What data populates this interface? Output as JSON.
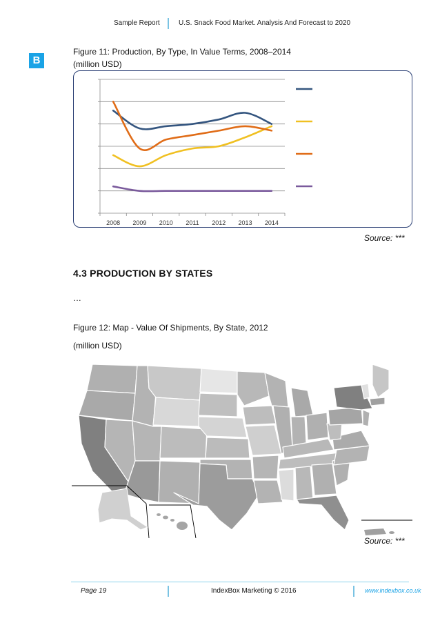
{
  "header": {
    "left": "Sample Report",
    "right": "U.S. Snack Food Market. Analysis And Forecast to 2020"
  },
  "logo": {
    "letter": "B",
    "color": "#1aa3e6"
  },
  "figure11": {
    "title": "Figure 11: Production, By Type, In Value Terms, 2008–2014",
    "unit": "(million USD)",
    "source": "Source: ***"
  },
  "chart_data": {
    "type": "line",
    "title": "Figure 11: Production, By Type, In Value Terms, 2008–2014",
    "ylabel": "million USD",
    "categories": [
      "2008",
      "2009",
      "2010",
      "2011",
      "2012",
      "2013",
      "2014"
    ],
    "ylim": [
      0,
      6
    ],
    "grid": true,
    "legend_position": "right",
    "series": [
      {
        "name": "",
        "color": "#34557f",
        "values": [
          4.6,
          3.8,
          3.9,
          4.0,
          4.2,
          4.5,
          4.0
        ]
      },
      {
        "name": "",
        "color": "#f0c022",
        "values": [
          2.6,
          2.1,
          2.6,
          2.9,
          3.0,
          3.4,
          3.9
        ]
      },
      {
        "name": "",
        "color": "#e06c17",
        "values": [
          5.0,
          2.9,
          3.3,
          3.5,
          3.7,
          3.9,
          3.7
        ]
      },
      {
        "name": "",
        "color": "#7a5a9c",
        "values": [
          1.2,
          1.0,
          1.0,
          1.0,
          1.0,
          1.0,
          1.0
        ]
      }
    ]
  },
  "section": {
    "title": "4.3 PRODUCTION BY STATES",
    "body": "…"
  },
  "figure12": {
    "title": "Figure 12: Map - Value Of Shipments, By State, 2012",
    "unit": "(million USD)",
    "source": "Source: ***"
  },
  "footer": {
    "page": "Page 19",
    "center": "IndexBox Marketing © 2016",
    "url": "www.indexbox.co.uk"
  }
}
